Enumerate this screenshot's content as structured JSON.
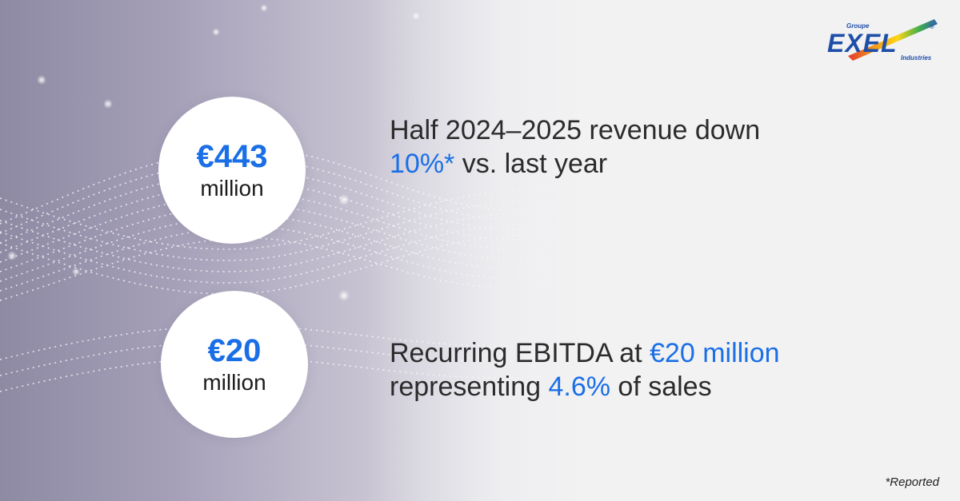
{
  "stats": [
    {
      "value": "€443",
      "unit": "million",
      "line1_pre": "Half 2024–2025 revenue down",
      "line2_highlight": "10%*",
      "line2_post": " vs. last year"
    },
    {
      "value": "€20",
      "unit": "million",
      "line1_pre": "Recurring EBITDA at ",
      "line1_highlight": "€20 million",
      "line2_pre": "representing ",
      "line2_highlight": "4.6%",
      "line2_post": " of sales"
    }
  ],
  "footnote": "*Reported",
  "logo": {
    "top": "Groupe",
    "main": "EXEL",
    "registered": "®",
    "sub": "Industries"
  },
  "colors": {
    "accent": "#1a6fe6",
    "text": "#2b2b2b",
    "logo_blue": "#1e4fa8"
  }
}
